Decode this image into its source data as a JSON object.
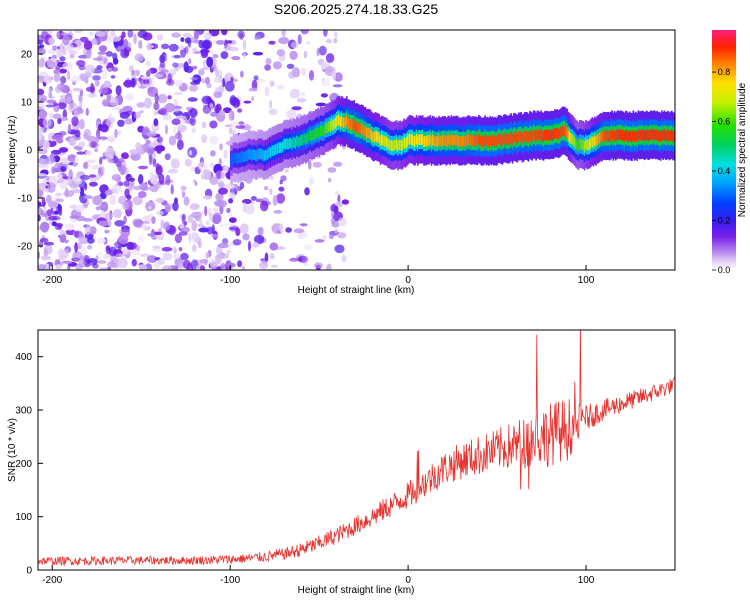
{
  "figure_title": "S206.2025.274.18.33.G25",
  "chart_data": [
    {
      "type": "heatmap",
      "xlabel": "Height of straight line (km)",
      "ylabel": "Frequency (Hz)",
      "xlim": [
        -208,
        150
      ],
      "ylim": [
        -25,
        25
      ],
      "xticks": [
        -200,
        -100,
        0,
        100
      ],
      "yticks": [
        -20,
        -10,
        0,
        10,
        20
      ],
      "colorbar": {
        "label": "Normalized spectral amplitude",
        "range": [
          0,
          0.97
        ],
        "ticks": [
          0.0,
          0.2,
          0.4,
          0.6,
          0.8
        ]
      },
      "ridge": {
        "description": "dominant frequency track",
        "x": [
          -100,
          -90,
          -80,
          -70,
          -60,
          -55,
          -48,
          -40,
          -35,
          -30,
          -25,
          -20,
          -15,
          -10,
          -5,
          0,
          10,
          20,
          30,
          40,
          50,
          60,
          70,
          80,
          88,
          92,
          95,
          100,
          110,
          120,
          130,
          140,
          150
        ],
        "y": [
          -2,
          -1,
          -1,
          1,
          2,
          3,
          4,
          6,
          6,
          5,
          4,
          3,
          2,
          1,
          1,
          2,
          2,
          2,
          2,
          2,
          2,
          2.5,
          3,
          3,
          4,
          2,
          1,
          1,
          3,
          3,
          3,
          3,
          3
        ],
        "amplitude": [
          0.3,
          0.35,
          0.4,
          0.45,
          0.5,
          0.55,
          0.6,
          0.75,
          0.85,
          0.9,
          0.85,
          0.8,
          0.75,
          0.7,
          0.7,
          0.75,
          0.8,
          0.85,
          0.85,
          0.9,
          0.9,
          0.9,
          0.9,
          0.92,
          0.9,
          0.7,
          0.6,
          0.7,
          0.9,
          0.92,
          0.92,
          0.92,
          0.92
        ]
      },
      "noise_region": [
        -208,
        -55
      ]
    },
    {
      "type": "line",
      "xlabel": "Height of straight line (km)",
      "ylabel": "SNR (10 * v/v)",
      "xlim": [
        -208,
        150
      ],
      "ylim": [
        0,
        450
      ],
      "xticks": [
        -200,
        -100,
        0,
        100
      ],
      "yticks": [
        0,
        100,
        200,
        300,
        400
      ],
      "series": [
        {
          "name": "SNR",
          "color": "#e8322e",
          "x": [
            -208,
            -200,
            -180,
            -160,
            -140,
            -120,
            -100,
            -90,
            -80,
            -70,
            -60,
            -50,
            -40,
            -30,
            -20,
            -10,
            0,
            10,
            20,
            30,
            40,
            50,
            60,
            70,
            80,
            90,
            95,
            100,
            110,
            120,
            130,
            140,
            150
          ],
          "y": [
            17,
            17,
            17,
            18,
            18,
            18,
            20,
            22,
            25,
            30,
            38,
            50,
            65,
            82,
            100,
            120,
            140,
            165,
            190,
            205,
            215,
            225,
            235,
            245,
            255,
            265,
            275,
            285,
            300,
            312,
            323,
            335,
            348
          ],
          "noise_amplitude": [
            8,
            8,
            8,
            8,
            8,
            8,
            9,
            9,
            10,
            11,
            13,
            15,
            16,
            18,
            20,
            22,
            25,
            30,
            32,
            35,
            38,
            40,
            45,
            55,
            60,
            60,
            40,
            25,
            20,
            18,
            17,
            16,
            15
          ]
        }
      ]
    }
  ]
}
